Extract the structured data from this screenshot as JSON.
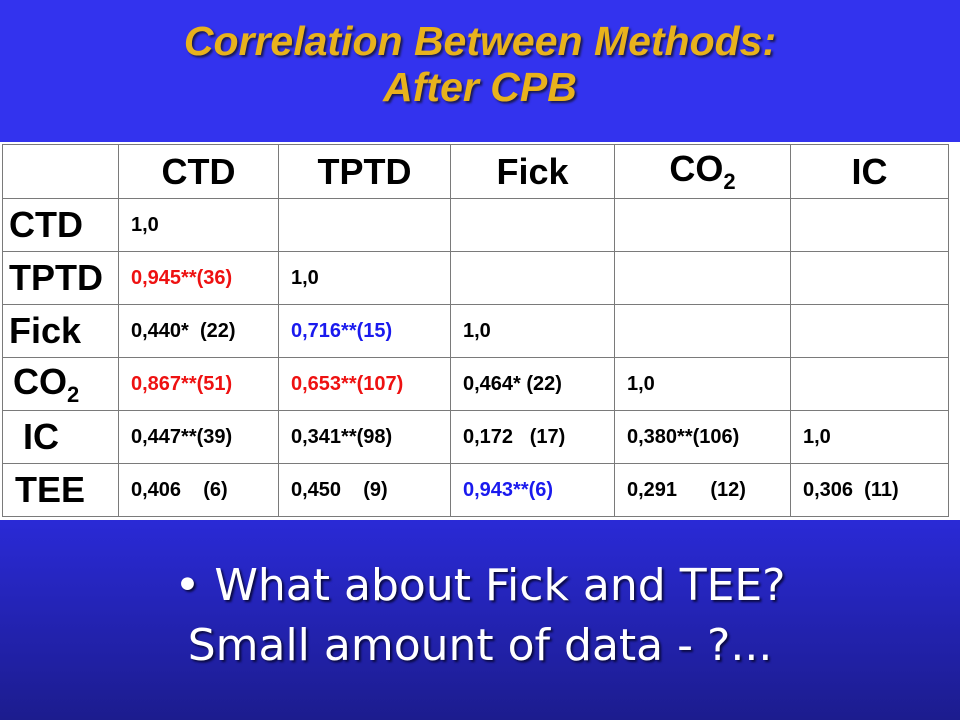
{
  "title": {
    "line1": "Correlation Between Methods:",
    "line2": "After CPB"
  },
  "table": {
    "columns": [
      "CTD",
      "TPTD",
      "Fick",
      "CO",
      "IC"
    ],
    "co2_sub": "2",
    "rows": [
      {
        "label": "CTD",
        "cells": [
          {
            "text": "1,0",
            "color": "black"
          },
          {
            "text": ""
          },
          {
            "text": ""
          },
          {
            "text": ""
          },
          {
            "text": ""
          }
        ]
      },
      {
        "label": "TPTD",
        "cells": [
          {
            "text": "0,945**(36)",
            "color": "red"
          },
          {
            "text": "1,0",
            "color": "black"
          },
          {
            "text": ""
          },
          {
            "text": ""
          },
          {
            "text": ""
          }
        ]
      },
      {
        "label": "Fick",
        "cells": [
          {
            "text": "0,440*  (22)",
            "color": "black"
          },
          {
            "text": "0,716**(15)",
            "color": "blue"
          },
          {
            "text": "1,0",
            "color": "black"
          },
          {
            "text": ""
          },
          {
            "text": ""
          }
        ]
      },
      {
        "label": "CO",
        "cells": [
          {
            "text": "0,867**(51)",
            "color": "red"
          },
          {
            "text": "0,653**(107)",
            "color": "red"
          },
          {
            "text": "0,464* (22)",
            "color": "black"
          },
          {
            "text": "1,0",
            "color": "black"
          },
          {
            "text": ""
          }
        ]
      },
      {
        "label": "IC",
        "cells": [
          {
            "text": "0,447**(39)",
            "color": "black"
          },
          {
            "text": "0,341**(98)",
            "color": "black"
          },
          {
            "text": "0,172   (17)",
            "color": "black"
          },
          {
            "text": "0,380**(106)",
            "color": "black"
          },
          {
            "text": "1,0",
            "color": "black"
          }
        ]
      },
      {
        "label": "TEE",
        "cells": [
          {
            "text": "0,406    (6)",
            "color": "black"
          },
          {
            "text": "0,450    (9)",
            "color": "black"
          },
          {
            "text": "0,943**(6)",
            "color": "blue"
          },
          {
            "text": "0,291      (12)",
            "color": "black"
          },
          {
            "text": "0,306  (11)",
            "color": "black"
          }
        ]
      }
    ]
  },
  "bottom": {
    "line1": "• What about Fick and TEE?",
    "line2": "Small amount of data - ?..."
  },
  "colors": {
    "title": "#e8b21c",
    "background": "#3333ee",
    "red": "#ee1111",
    "blue": "#1a1aee"
  }
}
